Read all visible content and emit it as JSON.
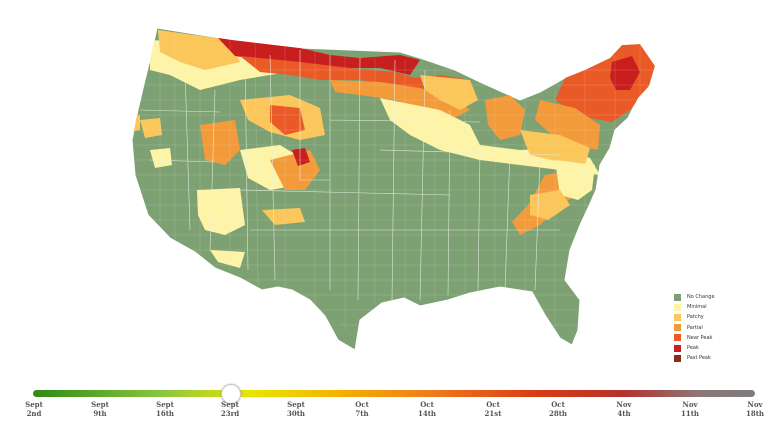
{
  "legend": {
    "items": [
      {
        "label": "No Change",
        "color": "#7da172"
      },
      {
        "label": "Minimal",
        "color": "#fdf4a8"
      },
      {
        "label": "Patchy",
        "color": "#fbc65a"
      },
      {
        "label": "Partial",
        "color": "#f39a3a"
      },
      {
        "label": "Near Peak",
        "color": "#ea5a27"
      },
      {
        "label": "Peak",
        "color": "#c81e1e"
      },
      {
        "label": "Past Peak",
        "color": "#8c2a1a"
      }
    ]
  },
  "slider": {
    "selected": "Sept 23rd",
    "selected_index": 3,
    "dates": [
      {
        "month": "Sept",
        "day": "2nd"
      },
      {
        "month": "Sept",
        "day": "9th"
      },
      {
        "month": "Sept",
        "day": "16th"
      },
      {
        "month": "Sept",
        "day": "23rd"
      },
      {
        "month": "Sept",
        "day": "30th"
      },
      {
        "month": "Oct",
        "day": "7th"
      },
      {
        "month": "Oct",
        "day": "14th"
      },
      {
        "month": "Oct",
        "day": "21st"
      },
      {
        "month": "Oct",
        "day": "28th"
      },
      {
        "month": "Nov",
        "day": "4th"
      },
      {
        "month": "Nov",
        "day": "11th"
      },
      {
        "month": "Nov",
        "day": "18th"
      }
    ]
  },
  "colors": {
    "base": "#7da172",
    "border": "#e9efe4"
  }
}
